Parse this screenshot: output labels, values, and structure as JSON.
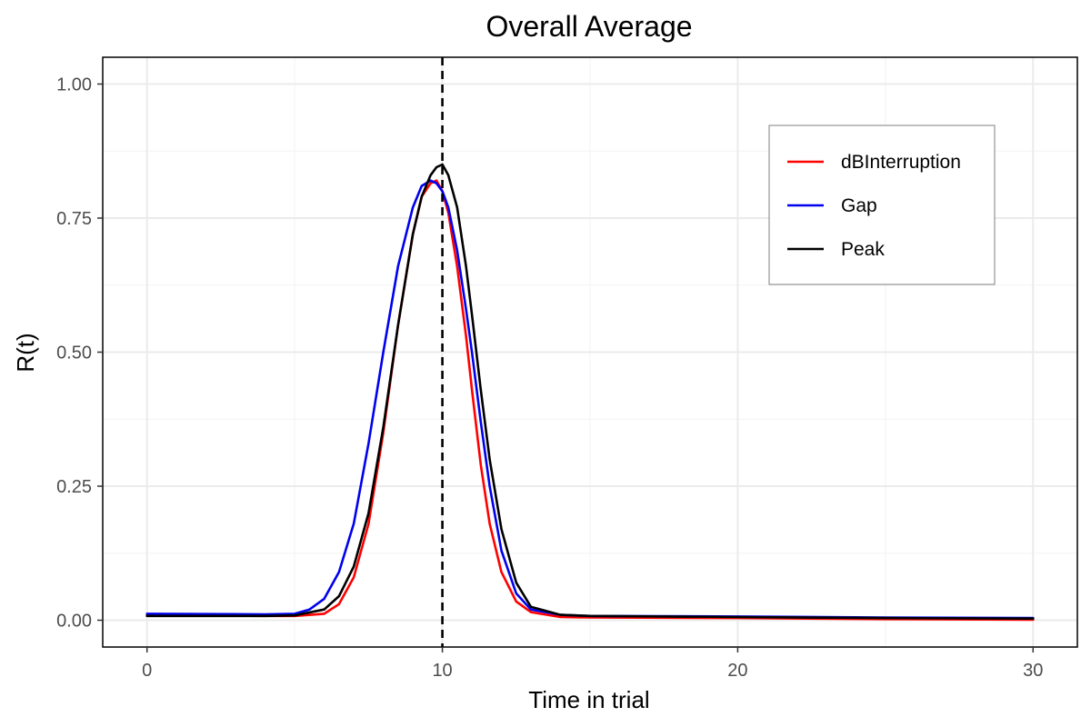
{
  "chart_data": {
    "type": "line",
    "title": "Overall Average",
    "xlabel": "Time in trial",
    "ylabel": "R(t)",
    "xlim": [
      -1.5,
      31.5
    ],
    "ylim": [
      -0.05,
      1.05
    ],
    "x_ticks": [
      0,
      10,
      20,
      30
    ],
    "x_tick_labels": [
      "0",
      "10",
      "20",
      "30"
    ],
    "y_ticks": [
      0,
      0.25,
      0.5,
      0.75,
      1.0
    ],
    "y_tick_labels": [
      "0.00",
      "0.25",
      "0.50",
      "0.75",
      "1.00"
    ],
    "grid": true,
    "legend_position": "top-right",
    "vline": {
      "x": 10,
      "style": "dashed",
      "color": "#000000"
    },
    "series": [
      {
        "name": "dBInterruption",
        "color": "#ff0000",
        "x": [
          0,
          4,
          5,
          6,
          6.5,
          7,
          7.5,
          8,
          8.5,
          9,
          9.3,
          9.6,
          9.8,
          10,
          10.2,
          10.5,
          10.8,
          11,
          11.3,
          11.6,
          12,
          12.5,
          13,
          14,
          15,
          20,
          25,
          30
        ],
        "y": [
          0.009,
          0.008,
          0.008,
          0.012,
          0.03,
          0.08,
          0.18,
          0.35,
          0.55,
          0.72,
          0.79,
          0.815,
          0.82,
          0.8,
          0.76,
          0.66,
          0.53,
          0.43,
          0.29,
          0.18,
          0.09,
          0.035,
          0.015,
          0.006,
          0.005,
          0.004,
          0.002,
          0.001
        ]
      },
      {
        "name": "Gap",
        "color": "#0000ee",
        "x": [
          0,
          4,
          5,
          5.5,
          6,
          6.5,
          7,
          7.5,
          8,
          8.5,
          9,
          9.3,
          9.6,
          9.8,
          10,
          10.2,
          10.5,
          10.8,
          11,
          11.3,
          11.6,
          12,
          12.5,
          13,
          14,
          15,
          20,
          25,
          30
        ],
        "y": [
          0.012,
          0.011,
          0.012,
          0.02,
          0.04,
          0.09,
          0.18,
          0.33,
          0.5,
          0.66,
          0.77,
          0.81,
          0.82,
          0.815,
          0.8,
          0.77,
          0.69,
          0.58,
          0.5,
          0.37,
          0.25,
          0.13,
          0.05,
          0.02,
          0.01,
          0.008,
          0.007,
          0.005,
          0.004
        ]
      },
      {
        "name": "Peak",
        "color": "#000000",
        "x": [
          0,
          4,
          5,
          6,
          6.5,
          7,
          7.5,
          8,
          8.5,
          9,
          9.3,
          9.6,
          9.8,
          10,
          10.2,
          10.5,
          10.8,
          11,
          11.3,
          11.6,
          12,
          12.5,
          13,
          14,
          15,
          20,
          25,
          30
        ],
        "y": [
          0.008,
          0.008,
          0.009,
          0.02,
          0.045,
          0.1,
          0.2,
          0.36,
          0.55,
          0.72,
          0.79,
          0.83,
          0.845,
          0.85,
          0.83,
          0.77,
          0.66,
          0.57,
          0.43,
          0.3,
          0.17,
          0.07,
          0.025,
          0.01,
          0.008,
          0.006,
          0.004,
          0.003
        ]
      }
    ]
  }
}
